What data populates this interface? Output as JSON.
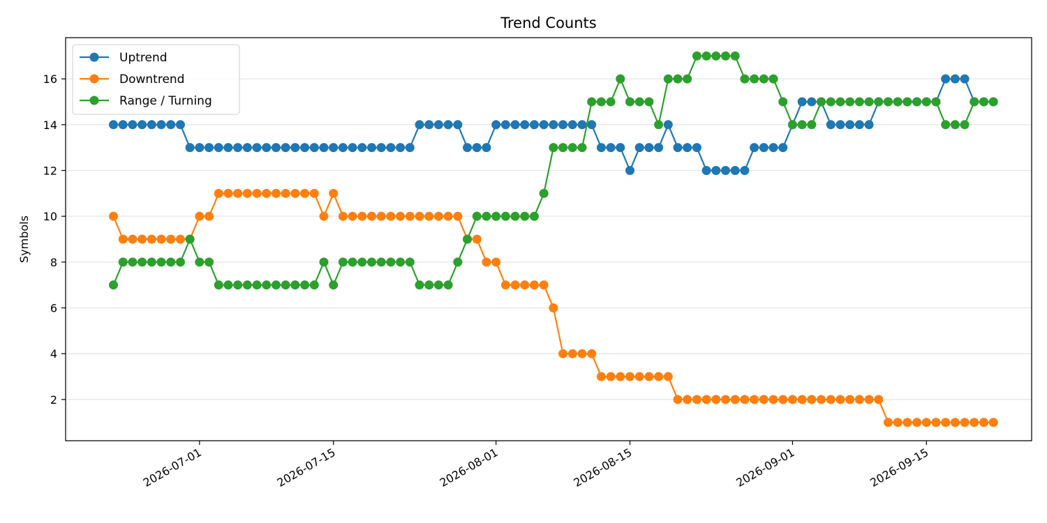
{
  "chart_data": {
    "type": "line",
    "title": "Trend Counts",
    "xlabel": "",
    "ylabel": "Symbols",
    "x_start": "2026-06-22",
    "x": [
      "2026-06-22",
      "2026-06-23",
      "2026-06-24",
      "2026-06-25",
      "2026-06-26",
      "2026-06-27",
      "2026-06-28",
      "2026-06-29",
      "2026-06-30",
      "2026-07-01",
      "2026-07-02",
      "2026-07-03",
      "2026-07-04",
      "2026-07-05",
      "2026-07-06",
      "2026-07-07",
      "2026-07-08",
      "2026-07-09",
      "2026-07-10",
      "2026-07-11",
      "2026-07-12",
      "2026-07-13",
      "2026-07-14",
      "2026-07-15",
      "2026-07-16",
      "2026-07-17",
      "2026-07-18",
      "2026-07-19",
      "2026-07-20",
      "2026-07-21",
      "2026-07-22",
      "2026-07-23",
      "2026-07-24",
      "2026-07-25",
      "2026-07-26",
      "2026-07-27",
      "2026-07-28",
      "2026-07-29",
      "2026-07-30",
      "2026-07-31",
      "2026-08-01",
      "2026-08-02",
      "2026-08-03",
      "2026-08-04",
      "2026-08-05",
      "2026-08-06",
      "2026-08-07",
      "2026-08-08",
      "2026-08-09",
      "2026-08-10",
      "2026-08-11",
      "2026-08-12",
      "2026-08-13",
      "2026-08-14",
      "2026-08-15",
      "2026-08-16",
      "2026-08-17",
      "2026-08-18",
      "2026-08-19",
      "2026-08-20",
      "2026-08-21",
      "2026-08-22",
      "2026-08-23",
      "2026-08-24",
      "2026-08-25",
      "2026-08-26",
      "2026-08-27",
      "2026-08-28",
      "2026-08-29",
      "2026-08-30",
      "2026-08-31",
      "2026-09-01",
      "2026-09-02",
      "2026-09-03",
      "2026-09-04",
      "2026-09-05",
      "2026-09-06",
      "2026-09-07",
      "2026-09-08",
      "2026-09-09",
      "2026-09-10",
      "2026-09-11",
      "2026-09-12",
      "2026-09-13",
      "2026-09-14",
      "2026-09-15",
      "2026-09-16",
      "2026-09-17",
      "2026-09-18",
      "2026-09-19",
      "2026-09-20",
      "2026-09-21",
      "2026-09-22"
    ],
    "xlim": [
      "2026-06-17",
      "2026-09-26"
    ],
    "ylim": [
      0.2,
      17.8
    ],
    "x_ticks": [
      {
        "date": "2026-07-01",
        "label": "2026-07-01"
      },
      {
        "date": "2026-07-15",
        "label": "2026-07-15"
      },
      {
        "date": "2026-08-01",
        "label": "2026-08-01"
      },
      {
        "date": "2026-08-15",
        "label": "2026-08-15"
      },
      {
        "date": "2026-09-01",
        "label": "2026-09-01"
      },
      {
        "date": "2026-09-15",
        "label": "2026-09-15"
      }
    ],
    "y_ticks": [
      2,
      4,
      6,
      8,
      10,
      12,
      14,
      16
    ],
    "grid": "horizontal",
    "legend_position": "top-left",
    "series": [
      {
        "name": "Uptrend",
        "color": "#1f77b4",
        "values": [
          14,
          14,
          14,
          14,
          14,
          14,
          14,
          14,
          13,
          13,
          13,
          13,
          13,
          13,
          13,
          13,
          13,
          13,
          13,
          13,
          13,
          13,
          13,
          13,
          13,
          13,
          13,
          13,
          13,
          13,
          13,
          13,
          14,
          14,
          14,
          14,
          14,
          13,
          13,
          13,
          14,
          14,
          14,
          14,
          14,
          14,
          14,
          14,
          14,
          14,
          14,
          13,
          13,
          13,
          12,
          13,
          13,
          13,
          14,
          13,
          13,
          13,
          12,
          12,
          12,
          12,
          12,
          13,
          13,
          13,
          13,
          14,
          15,
          15,
          15,
          14,
          14,
          14,
          14,
          14,
          15,
          15,
          15,
          15,
          15,
          15,
          15,
          16,
          16,
          16,
          15,
          15,
          15
        ]
      },
      {
        "name": "Downtrend",
        "color": "#ff7f0e",
        "values": [
          10,
          9,
          9,
          9,
          9,
          9,
          9,
          9,
          9,
          10,
          10,
          11,
          11,
          11,
          11,
          11,
          11,
          11,
          11,
          11,
          11,
          11,
          10,
          11,
          10,
          10,
          10,
          10,
          10,
          10,
          10,
          10,
          10,
          10,
          10,
          10,
          10,
          9,
          9,
          8,
          8,
          7,
          7,
          7,
          7,
          7,
          6,
          4,
          4,
          4,
          4,
          3,
          3,
          3,
          3,
          3,
          3,
          3,
          3,
          2,
          2,
          2,
          2,
          2,
          2,
          2,
          2,
          2,
          2,
          2,
          2,
          2,
          2,
          2,
          2,
          2,
          2,
          2,
          2,
          2,
          2,
          1,
          1,
          1,
          1,
          1,
          1,
          1,
          1,
          1,
          1,
          1,
          1
        ]
      },
      {
        "name": "Range / Turning",
        "color": "#2ca02c",
        "values": [
          7,
          8,
          8,
          8,
          8,
          8,
          8,
          8,
          9,
          8,
          8,
          7,
          7,
          7,
          7,
          7,
          7,
          7,
          7,
          7,
          7,
          7,
          8,
          7,
          8,
          8,
          8,
          8,
          8,
          8,
          8,
          8,
          7,
          7,
          7,
          7,
          8,
          9,
          10,
          10,
          10,
          10,
          10,
          10,
          10,
          11,
          13,
          13,
          13,
          13,
          15,
          15,
          15,
          16,
          15,
          15,
          15,
          14,
          16,
          16,
          16,
          17,
          17,
          17,
          17,
          17,
          16,
          16,
          16,
          16,
          15,
          14,
          14,
          14,
          15,
          15,
          15,
          15,
          15,
          15,
          15,
          15,
          15,
          15,
          15,
          15,
          15,
          14,
          14,
          14,
          15,
          15,
          15
        ]
      }
    ]
  }
}
